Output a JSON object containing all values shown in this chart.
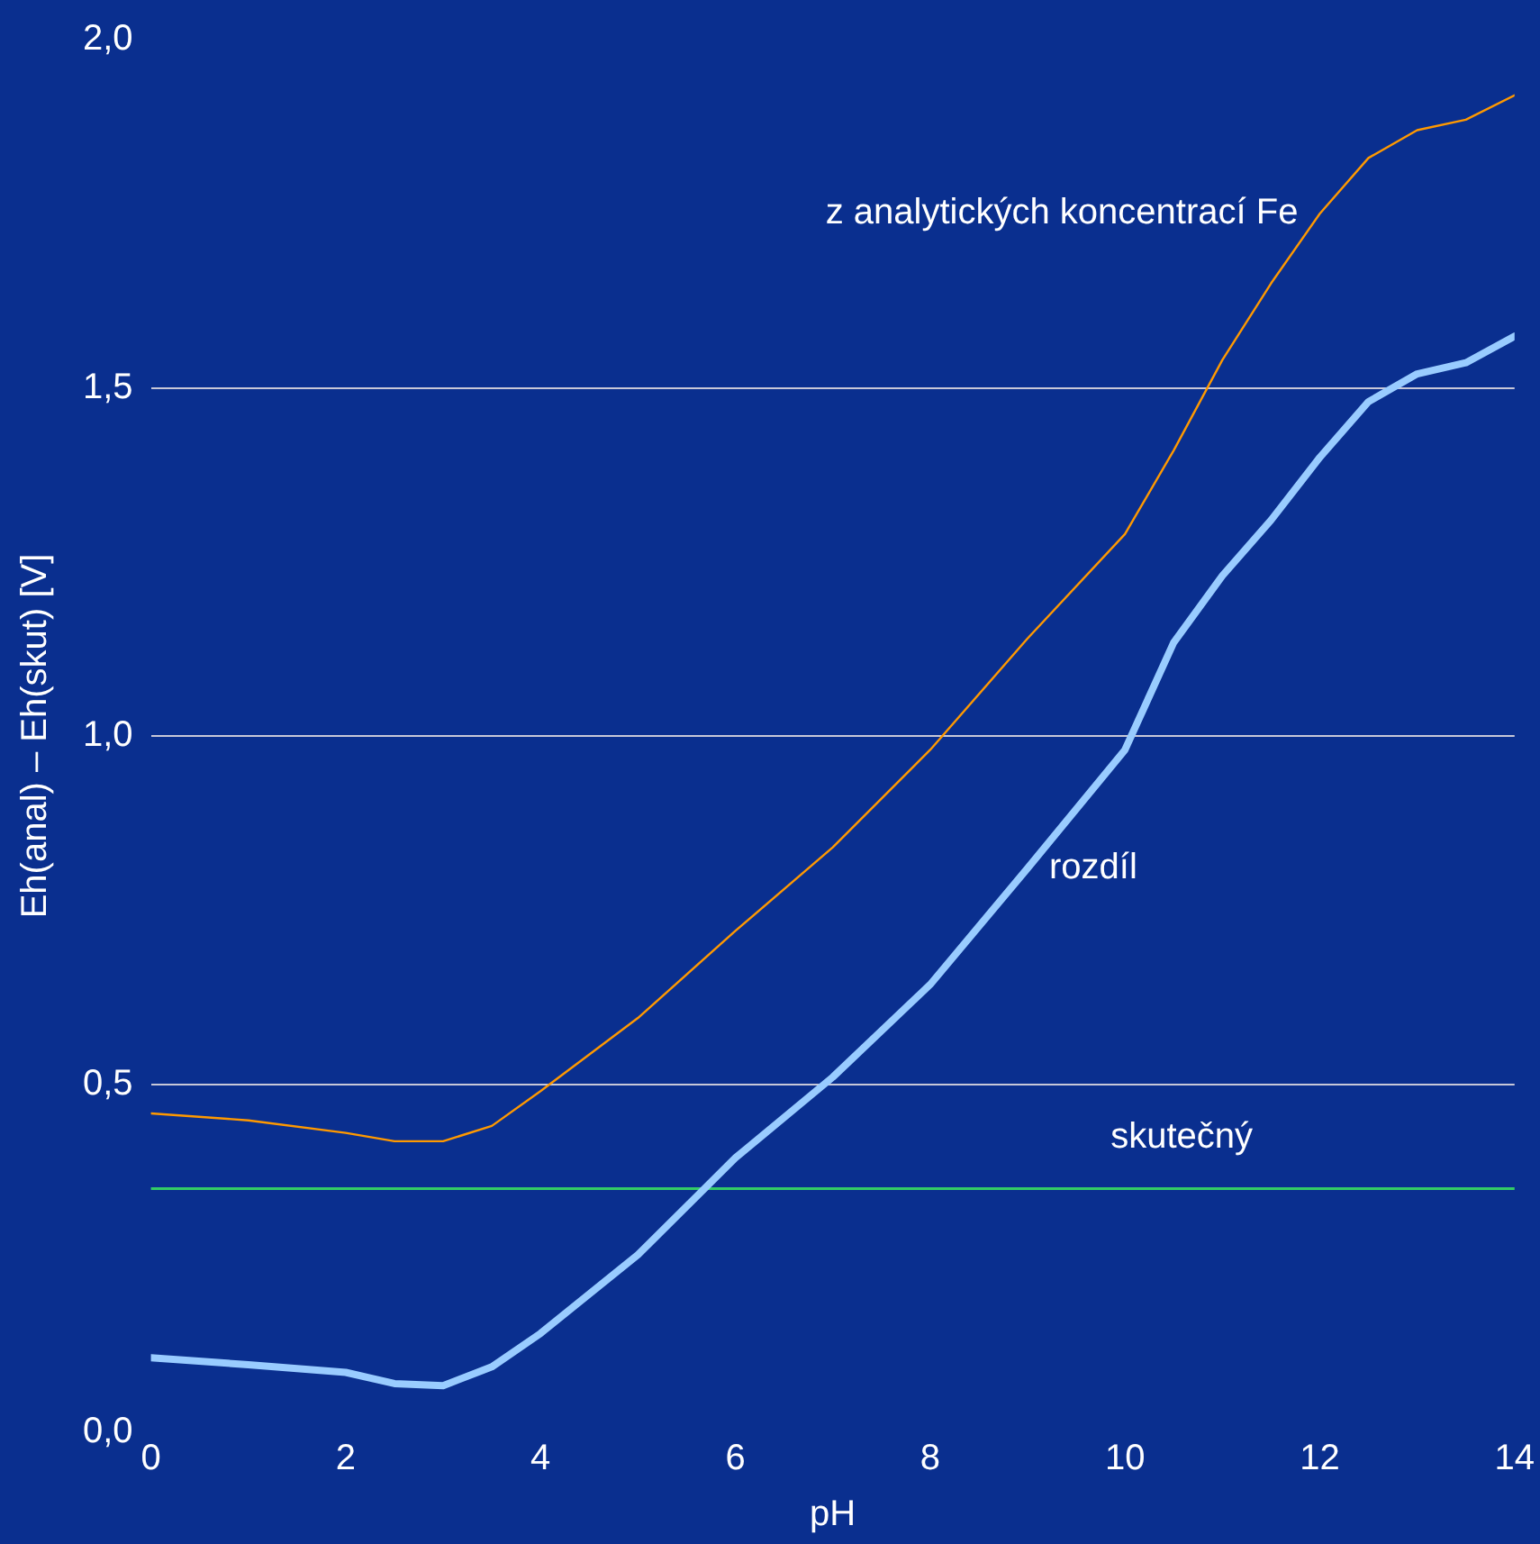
{
  "chart_data": {
    "type": "line",
    "xlabel": "pH",
    "ylabel": "Eh(anal) – Eh(skut) [V]",
    "xlim": [
      0,
      14
    ],
    "xticks": [
      0,
      2,
      4,
      6,
      8,
      10,
      12,
      14
    ],
    "ylim": [
      0,
      2
    ],
    "yticks": [
      {
        "value": 0,
        "label": "0,0"
      },
      {
        "value": 0.5,
        "label": "0,5"
      },
      {
        "value": 1,
        "label": "1,0"
      },
      {
        "value": 1.5,
        "label": "1,5"
      },
      {
        "value": 2,
        "label": "2,0"
      }
    ],
    "grid": "y",
    "legend": false,
    "marker": "none",
    "x": [
      0,
      1,
      2,
      2.5,
      3,
      3.5,
      4,
      5,
      6,
      7,
      8,
      9,
      10,
      10.5,
      11,
      11.5,
      12,
      12.5,
      13,
      13.5,
      14
    ],
    "series": [
      {
        "name": "z analytických koncentrací Fe",
        "color": "#ff9900",
        "values": [
          0.458,
          0.448,
          0.43,
          0.418,
          0.418,
          0.44,
          0.49,
          0.595,
          0.72,
          0.84,
          0.98,
          1.14,
          1.29,
          1.41,
          1.54,
          1.65,
          1.75,
          1.83,
          1.87,
          1.885,
          1.92
        ]
      },
      {
        "name": "rozdíl",
        "color": "#99ccff",
        "values": [
          0.107,
          0.097,
          0.086,
          0.07,
          0.067,
          0.094,
          0.142,
          0.255,
          0.394,
          0.51,
          0.643,
          0.81,
          0.98,
          1.134,
          1.23,
          1.31,
          1.4,
          1.48,
          1.52,
          1.536,
          1.574
        ]
      },
      {
        "name": "skutečný",
        "color": "#33cc66",
        "values": [
          0.35,
          0.35,
          0.35,
          0.35,
          0.35,
          0.35,
          0.35,
          0.35,
          0.35,
          0.35,
          0.35,
          0.35,
          0.35,
          0.35,
          0.35,
          0.35,
          0.35,
          0.35,
          0.35,
          0.35,
          0.35
        ]
      }
    ]
  }
}
